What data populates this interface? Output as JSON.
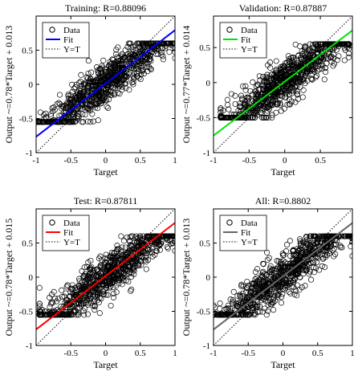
{
  "chart_data": [
    {
      "type": "scatter",
      "title": "Training: R=0.88096",
      "xlabel": "Target",
      "ylabel": "Output ~=0.78*Target + 0.013",
      "xlim": [
        -1,
        1
      ],
      "ylim": [
        -1,
        1
      ],
      "xticks": [
        "-1",
        "-0.5",
        "0",
        "0.5",
        "1"
      ],
      "yticks": [
        "-1",
        "-0.5",
        "0",
        "0.5"
      ],
      "fit": {
        "slope": 0.78,
        "intercept": 0.013,
        "color": "#0000ff"
      },
      "legend": {
        "placement": "top-left",
        "entries": [
          "Data",
          "Fit",
          "Y=T"
        ]
      },
      "data_cloud": {
        "x_range": [
          -1,
          1
        ],
        "y_range": [
          -0.55,
          0.6
        ],
        "density": "high"
      }
    },
    {
      "type": "scatter",
      "title": "Validation: R=0.87887",
      "xlabel": "Target",
      "ylabel": "Output ~=0.77*Target + 0.014",
      "xlim": [
        -1,
        0.95
      ],
      "ylim": [
        -1,
        0.95
      ],
      "xticks": [
        "-1",
        "-0.5",
        "0",
        "0.5"
      ],
      "yticks": [
        "-1",
        "-0.5",
        "0",
        "0.5"
      ],
      "fit": {
        "slope": 0.77,
        "intercept": 0.014,
        "color": "#00e600"
      },
      "legend": {
        "placement": "top-left",
        "entries": [
          "Data",
          "Fit",
          "Y=T"
        ]
      },
      "data_cloud": {
        "x_range": [
          -0.9,
          0.9
        ],
        "y_range": [
          -0.5,
          0.55
        ],
        "density": "high"
      }
    },
    {
      "type": "scatter",
      "title": "Test: R=0.87811",
      "xlabel": "Target",
      "ylabel": "Output ~=0.78*Target + 0.015",
      "xlim": [
        -1,
        1
      ],
      "ylim": [
        -1,
        1
      ],
      "xticks": [
        "-0.5",
        "0",
        "0.5",
        "1"
      ],
      "yticks": [
        "-1",
        "-0.5",
        "0",
        "0.5"
      ],
      "fit": {
        "slope": 0.78,
        "intercept": 0.015,
        "color": "#ff0000"
      },
      "legend": {
        "placement": "top-left",
        "entries": [
          "Data",
          "Fit",
          "Y=T"
        ]
      },
      "data_cloud": {
        "x_range": [
          -0.95,
          1
        ],
        "y_range": [
          -0.55,
          0.6
        ],
        "density": "high"
      }
    },
    {
      "type": "scatter",
      "title": "All: R=0.8802",
      "xlabel": "Target",
      "ylabel": "Output ~=0.78*Target + 0.013",
      "xlim": [
        -1,
        1
      ],
      "ylim": [
        -1,
        1
      ],
      "xticks": [
        "-1",
        "-0.5",
        "0",
        "0.5",
        "1"
      ],
      "yticks": [
        "-1",
        "-0.5",
        "0",
        "0.5"
      ],
      "fit": {
        "slope": 0.78,
        "intercept": 0.013,
        "color": "#666666"
      },
      "legend": {
        "placement": "top-left",
        "entries": [
          "Data",
          "Fit",
          "Y=T"
        ]
      },
      "data_cloud": {
        "x_range": [
          -1,
          1
        ],
        "y_range": [
          -0.55,
          0.6
        ],
        "density": "high"
      }
    }
  ]
}
